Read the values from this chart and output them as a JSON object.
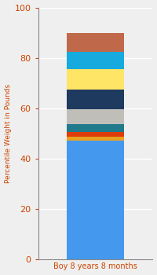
{
  "category": "Boy 8 years 8 months",
  "ylabel": "Percentile Weight in Pounds",
  "ylim": [
    0,
    100
  ],
  "yticks": [
    0,
    20,
    40,
    60,
    80,
    100
  ],
  "segments": [
    {
      "value": 47,
      "color": "#4499EE"
    },
    {
      "value": 1.5,
      "color": "#E8A020"
    },
    {
      "value": 2,
      "color": "#DD3D0A"
    },
    {
      "value": 3,
      "color": "#1F7A8C"
    },
    {
      "value": 6,
      "color": "#C0BEB8"
    },
    {
      "value": 8,
      "color": "#1F3A5F"
    },
    {
      "value": 8,
      "color": "#FFE566"
    },
    {
      "value": 7,
      "color": "#16AADE"
    },
    {
      "value": 7.5,
      "color": "#C0694A"
    }
  ],
  "background_color": "#EFEFEF",
  "xlabel_color": "#CC4400",
  "ylabel_color": "#CC4400",
  "tick_color": "#CC4400",
  "grid_color": "#FFFFFF",
  "bar_width": 0.5,
  "figsize": [
    2.0,
    3.5
  ],
  "dpi": 100
}
